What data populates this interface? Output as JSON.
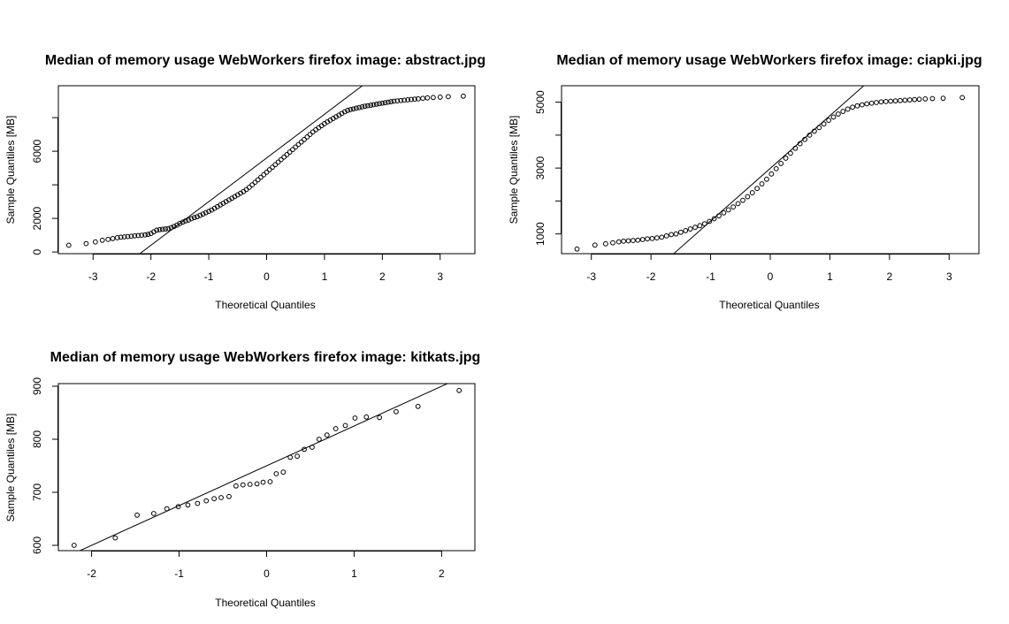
{
  "chart_data": [
    {
      "type": "scatter",
      "title": "Median of memory usage WebWorkers firefox image:  abstract.jpg",
      "xlabel": "Theoretical Quantiles",
      "ylabel": "Sample Quantiles [MB]",
      "xlim": [
        -3.6,
        3.6
      ],
      "ylim": [
        -100,
        9900
      ],
      "xticks": [
        -3,
        -2,
        -1,
        0,
        1,
        2,
        3
      ],
      "yticks": [
        0,
        2000,
        4000,
        6000,
        8000
      ],
      "ytick_labels": [
        "0",
        "2000",
        "",
        "6000",
        ""
      ],
      "qq_line": {
        "intercept": 5600,
        "slope": 2600
      },
      "points": [
        [
          -3.42,
          400
        ],
        [
          -3.12,
          500
        ],
        [
          -2.96,
          600
        ],
        [
          -2.84,
          700
        ],
        [
          -2.74,
          750
        ],
        [
          -2.66,
          800
        ],
        [
          -2.58,
          850
        ],
        [
          -2.52,
          880
        ],
        [
          -2.46,
          900
        ],
        [
          -2.4,
          920
        ],
        [
          -2.34,
          940
        ],
        [
          -2.28,
          960
        ],
        [
          -2.22,
          980
        ],
        [
          -2.16,
          1000
        ],
        [
          -2.1,
          1020
        ],
        [
          -2.05,
          1050
        ],
        [
          -2.0,
          1100
        ],
        [
          -1.95,
          1200
        ],
        [
          -1.9,
          1300
        ],
        [
          -1.85,
          1330
        ],
        [
          -1.8,
          1350
        ],
        [
          -1.75,
          1370
        ],
        [
          -1.7,
          1390
        ],
        [
          -1.65,
          1450
        ],
        [
          -1.6,
          1520
        ],
        [
          -1.55,
          1600
        ],
        [
          -1.5,
          1700
        ],
        [
          -1.45,
          1780
        ],
        [
          -1.4,
          1850
        ],
        [
          -1.35,
          1900
        ],
        [
          -1.3,
          1980
        ],
        [
          -1.25,
          2050
        ],
        [
          -1.2,
          2100
        ],
        [
          -1.15,
          2180
        ],
        [
          -1.1,
          2260
        ],
        [
          -1.05,
          2340
        ],
        [
          -1.0,
          2420
        ],
        [
          -0.95,
          2500
        ],
        [
          -0.9,
          2600
        ],
        [
          -0.85,
          2700
        ],
        [
          -0.8,
          2800
        ],
        [
          -0.75,
          2900
        ],
        [
          -0.7,
          3000
        ],
        [
          -0.65,
          3100
        ],
        [
          -0.6,
          3200
        ],
        [
          -0.55,
          3300
        ],
        [
          -0.5,
          3400
        ],
        [
          -0.45,
          3500
        ],
        [
          -0.4,
          3600
        ],
        [
          -0.35,
          3720
        ],
        [
          -0.3,
          3850
        ],
        [
          -0.25,
          4000
        ],
        [
          -0.2,
          4150
        ],
        [
          -0.15,
          4300
        ],
        [
          -0.1,
          4450
        ],
        [
          -0.05,
          4600
        ],
        [
          0.0,
          4750
        ],
        [
          0.05,
          4900
        ],
        [
          0.1,
          5050
        ],
        [
          0.15,
          5200
        ],
        [
          0.2,
          5350
        ],
        [
          0.25,
          5500
        ],
        [
          0.3,
          5650
        ],
        [
          0.35,
          5800
        ],
        [
          0.4,
          5950
        ],
        [
          0.45,
          6100
        ],
        [
          0.5,
          6250
        ],
        [
          0.55,
          6400
        ],
        [
          0.6,
          6550
        ],
        [
          0.65,
          6700
        ],
        [
          0.7,
          6850
        ],
        [
          0.75,
          7000
        ],
        [
          0.8,
          7150
        ],
        [
          0.85,
          7280
        ],
        [
          0.9,
          7400
        ],
        [
          0.95,
          7520
        ],
        [
          1.0,
          7640
        ],
        [
          1.05,
          7750
        ],
        [
          1.1,
          7850
        ],
        [
          1.15,
          7950
        ],
        [
          1.2,
          8050
        ],
        [
          1.25,
          8150
        ],
        [
          1.3,
          8250
        ],
        [
          1.35,
          8350
        ],
        [
          1.4,
          8430
        ],
        [
          1.45,
          8480
        ],
        [
          1.5,
          8520
        ],
        [
          1.55,
          8560
        ],
        [
          1.6,
          8600
        ],
        [
          1.65,
          8640
        ],
        [
          1.7,
          8680
        ],
        [
          1.75,
          8710
        ],
        [
          1.8,
          8740
        ],
        [
          1.85,
          8770
        ],
        [
          1.9,
          8800
        ],
        [
          1.95,
          8830
        ],
        [
          2.0,
          8860
        ],
        [
          2.05,
          8890
        ],
        [
          2.1,
          8920
        ],
        [
          2.15,
          8950
        ],
        [
          2.2,
          8980
        ],
        [
          2.26,
          9000
        ],
        [
          2.32,
          9020
        ],
        [
          2.38,
          9040
        ],
        [
          2.44,
          9060
        ],
        [
          2.5,
          9080
        ],
        [
          2.56,
          9100
        ],
        [
          2.62,
          9120
        ],
        [
          2.7,
          9150
        ],
        [
          2.78,
          9180
        ],
        [
          2.88,
          9200
        ],
        [
          3.0,
          9220
        ],
        [
          3.14,
          9250
        ],
        [
          3.4,
          9280
        ]
      ]
    },
    {
      "type": "scatter",
      "title": "Median of memory usage WebWorkers firefox image:  ciapki.jpg",
      "xlabel": "Theoretical Quantiles",
      "ylabel": "Sample Quantiles [MB]",
      "xlim": [
        -3.5,
        3.5
      ],
      "ylim": [
        400,
        5500
      ],
      "xticks": [
        -3,
        -2,
        -1,
        0,
        1,
        2,
        3
      ],
      "yticks": [
        1000,
        2000,
        3000,
        4000,
        5000
      ],
      "ytick_labels": [
        "1000",
        "",
        "3000",
        "",
        "5000"
      ],
      "qq_line": {
        "intercept": 2990,
        "slope": 1600
      },
      "points": [
        [
          -3.24,
          540
        ],
        [
          -2.94,
          660
        ],
        [
          -2.76,
          700
        ],
        [
          -2.64,
          730
        ],
        [
          -2.54,
          760
        ],
        [
          -2.46,
          780
        ],
        [
          -2.38,
          790
        ],
        [
          -2.3,
          800
        ],
        [
          -2.22,
          810
        ],
        [
          -2.14,
          830
        ],
        [
          -2.06,
          850
        ],
        [
          -1.98,
          860
        ],
        [
          -1.9,
          880
        ],
        [
          -1.82,
          900
        ],
        [
          -1.74,
          940
        ],
        [
          -1.66,
          980
        ],
        [
          -1.58,
          1000
        ],
        [
          -1.5,
          1050
        ],
        [
          -1.42,
          1100
        ],
        [
          -1.34,
          1150
        ],
        [
          -1.26,
          1200
        ],
        [
          -1.18,
          1250
        ],
        [
          -1.1,
          1310
        ],
        [
          -1.02,
          1380
        ],
        [
          -0.94,
          1460
        ],
        [
          -0.86,
          1550
        ],
        [
          -0.78,
          1640
        ],
        [
          -0.7,
          1730
        ],
        [
          -0.62,
          1820
        ],
        [
          -0.54,
          1920
        ],
        [
          -0.46,
          2020
        ],
        [
          -0.38,
          2130
        ],
        [
          -0.3,
          2250
        ],
        [
          -0.22,
          2380
        ],
        [
          -0.14,
          2520
        ],
        [
          -0.06,
          2660
        ],
        [
          0.02,
          2820
        ],
        [
          0.1,
          2980
        ],
        [
          0.18,
          3140
        ],
        [
          0.26,
          3300
        ],
        [
          0.34,
          3450
        ],
        [
          0.42,
          3600
        ],
        [
          0.5,
          3740
        ],
        [
          0.58,
          3870
        ],
        [
          0.66,
          4000
        ],
        [
          0.74,
          4120
        ],
        [
          0.82,
          4230
        ],
        [
          0.9,
          4340
        ],
        [
          0.98,
          4450
        ],
        [
          1.06,
          4550
        ],
        [
          1.14,
          4640
        ],
        [
          1.22,
          4720
        ],
        [
          1.3,
          4790
        ],
        [
          1.38,
          4850
        ],
        [
          1.46,
          4890
        ],
        [
          1.54,
          4920
        ],
        [
          1.62,
          4950
        ],
        [
          1.7,
          4970
        ],
        [
          1.78,
          4990
        ],
        [
          1.86,
          5010
        ],
        [
          1.94,
          5020
        ],
        [
          2.02,
          5030
        ],
        [
          2.1,
          5040
        ],
        [
          2.18,
          5050
        ],
        [
          2.26,
          5060
        ],
        [
          2.34,
          5070
        ],
        [
          2.42,
          5080
        ],
        [
          2.5,
          5090
        ],
        [
          2.6,
          5100
        ],
        [
          2.72,
          5110
        ],
        [
          2.9,
          5120
        ],
        [
          3.22,
          5140
        ]
      ]
    },
    {
      "type": "scatter",
      "title": "Median of memory usage WebWorkers firefox image:  kitkats.jpg",
      "xlabel": "Theoretical Quantiles",
      "ylabel": "Sample Quantiles [MB]",
      "xlim": [
        -2.38,
        2.38
      ],
      "ylim": [
        590,
        905
      ],
      "xticks": [
        -2,
        -1,
        0,
        1,
        2
      ],
      "yticks": [
        600,
        700,
        800,
        900
      ],
      "ytick_labels": [
        "600",
        "700",
        "800",
        "900"
      ],
      "qq_line": {
        "intercept": 750,
        "slope": 75
      },
      "points": [
        [
          -2.2,
          600
        ],
        [
          -1.73,
          614
        ],
        [
          -1.48,
          657
        ],
        [
          -1.29,
          660
        ],
        [
          -1.14,
          669
        ],
        [
          -1.01,
          673
        ],
        [
          -0.9,
          676
        ],
        [
          -0.79,
          679
        ],
        [
          -0.69,
          684
        ],
        [
          -0.6,
          688
        ],
        [
          -0.52,
          690
        ],
        [
          -0.43,
          692
        ],
        [
          -0.35,
          712
        ],
        [
          -0.27,
          714
        ],
        [
          -0.19,
          715
        ],
        [
          -0.11,
          716
        ],
        [
          -0.04,
          719
        ],
        [
          0.04,
          720
        ],
        [
          0.11,
          735
        ],
        [
          0.19,
          738
        ],
        [
          0.27,
          766
        ],
        [
          0.35,
          768
        ],
        [
          0.43,
          781
        ],
        [
          0.52,
          785
        ],
        [
          0.6,
          800
        ],
        [
          0.69,
          808
        ],
        [
          0.79,
          820
        ],
        [
          0.9,
          826
        ],
        [
          1.01,
          840
        ],
        [
          1.14,
          842
        ],
        [
          1.29,
          841
        ],
        [
          1.48,
          852
        ],
        [
          1.73,
          862
        ],
        [
          2.2,
          892
        ]
      ]
    }
  ]
}
